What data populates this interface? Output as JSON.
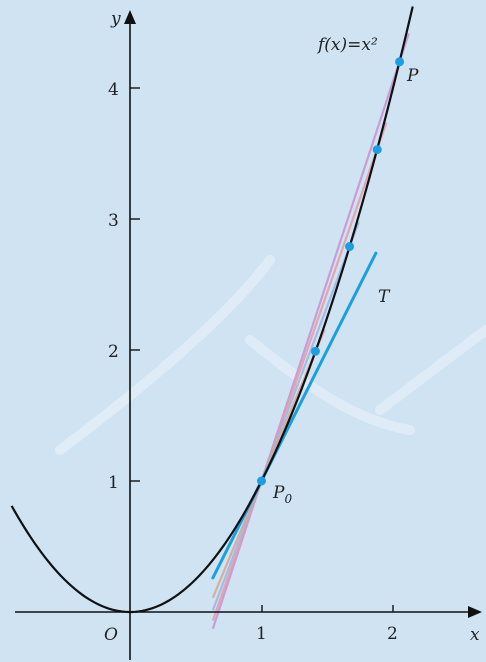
{
  "diagram": {
    "function_label": "f(x)=x²",
    "axes": {
      "x_label": "x",
      "y_label": "y",
      "origin_label": "O"
    },
    "x_ticks": [
      "1",
      "2"
    ],
    "y_ticks": [
      "1",
      "2",
      "3",
      "4"
    ],
    "point_labels": {
      "p0": "P",
      "p0_sub": "0",
      "p": "P"
    },
    "tangent_label": "T"
  },
  "chart_data": {
    "type": "line",
    "function": "x^2",
    "xlim": [
      -1.7,
      2.7
    ],
    "ylim": [
      -0.35,
      4.55
    ],
    "curve_domain": [
      -0.9,
      2.15
    ],
    "tangent": {
      "through": [
        1,
        1
      ],
      "slope": 2,
      "x_range": [
        0.63,
        1.87
      ],
      "label": "T"
    },
    "secant_base": [
      1,
      1
    ],
    "secant_points_x": [
      2.05,
      1.88,
      1.67,
      1.41
    ],
    "marked_points": [
      {
        "x": 1,
        "y": 1,
        "label": "P0"
      },
      {
        "x": 1.41,
        "y": 1.99
      },
      {
        "x": 1.67,
        "y": 2.79
      },
      {
        "x": 1.88,
        "y": 3.53
      },
      {
        "x": 2.05,
        "y": 4.2,
        "label": "P"
      }
    ],
    "colors": {
      "curve": "#111111",
      "tangent": "#1aa0e0",
      "points": "#1aa0e0",
      "secants": [
        "#c98fd0",
        "#e59aa6",
        "#9fb4df",
        "#d7a490"
      ]
    }
  }
}
